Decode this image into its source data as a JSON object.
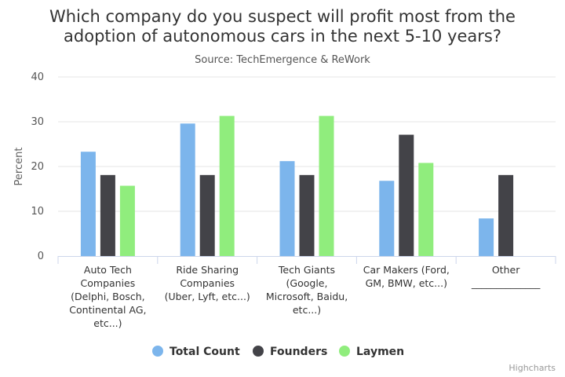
{
  "chart_data": {
    "type": "bar",
    "title_lines": [
      "Which company do you suspect will profit most from the",
      "adoption of autonomous cars in the next 5-10 years?"
    ],
    "subtitle": "Source: TechEmergence & ReWork",
    "ylabel": "Percent",
    "xlabel": "",
    "ylim": [
      0,
      40
    ],
    "yticks": [
      0,
      10,
      20,
      30,
      40
    ],
    "grid": true,
    "legend_position": "bottom-center",
    "categories": [
      [
        "Auto Tech",
        "Companies",
        "(Delphi, Bosch,",
        "Continental AG,",
        "etc...)"
      ],
      [
        "Ride Sharing",
        "Companies",
        "(Uber, Lyft, etc...)"
      ],
      [
        "Tech Giants",
        "(Google,",
        "Microsoft, Baidu,",
        "etc...)"
      ],
      [
        "Car Makers (Ford,",
        "GM, BMW, etc...)"
      ],
      [
        "Other",
        "______________"
      ]
    ],
    "series": [
      {
        "name": "Total Count",
        "color": "#7cb5ec",
        "values": [
          23.3,
          29.6,
          21.2,
          16.8,
          8.4
        ]
      },
      {
        "name": "Founders",
        "color": "#434348",
        "values": [
          18.1,
          18.1,
          18.1,
          27.1,
          18.1
        ]
      },
      {
        "name": "Laymen",
        "color": "#90ed7d",
        "values": [
          15.7,
          31.3,
          31.3,
          20.8,
          null
        ]
      }
    ]
  },
  "credit": "Highcharts"
}
